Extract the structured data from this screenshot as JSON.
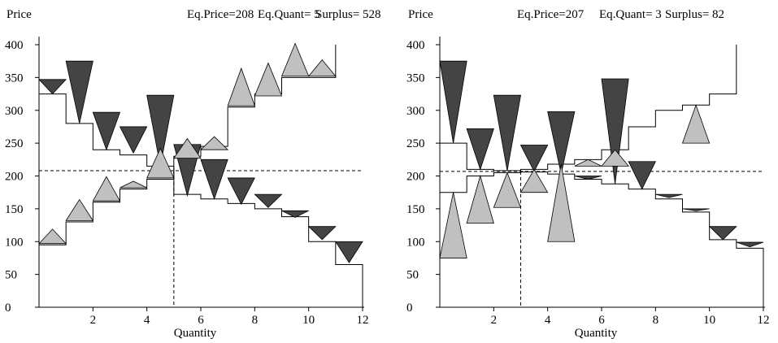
{
  "chart_data": [
    {
      "type": "step",
      "ylabel": "Price",
      "xlabel": "Quantity",
      "header": {
        "price_label": "Eq.Price=208",
        "quant_label": "Eq.Quant= 5",
        "surplus_label": "Surplus= 528"
      },
      "xlim": [
        0,
        12
      ],
      "ylim": [
        0,
        400
      ],
      "x_ticks": [
        2,
        4,
        6,
        8,
        10,
        12
      ],
      "y_ticks": [
        0,
        50,
        100,
        150,
        200,
        250,
        300,
        350,
        400
      ],
      "equilibrium": {
        "price": 208,
        "quantity": 5
      },
      "demand_steps": [
        325,
        280,
        240,
        232,
        215,
        172,
        165,
        158,
        150,
        138,
        100,
        65
      ],
      "supply_steps": [
        95,
        130,
        160,
        180,
        195,
        230,
        245,
        305,
        325,
        350,
        350,
        400
      ],
      "buyer_bids": [
        {
          "x": 0.5,
          "value": 325,
          "height": 22
        },
        {
          "x": 1.5,
          "value": 280,
          "height": 95
        },
        {
          "x": 2.5,
          "value": 240,
          "height": 57
        },
        {
          "x": 3.5,
          "value": 235,
          "height": 40
        },
        {
          "x": 4.5,
          "value": 215,
          "height": 108
        },
        {
          "x": 5.5,
          "value": 170,
          "height": 78
        },
        {
          "x": 6.5,
          "value": 165,
          "height": 60
        },
        {
          "x": 7.5,
          "value": 157,
          "height": 40
        },
        {
          "x": 8.5,
          "value": 152,
          "height": 20
        },
        {
          "x": 9.5,
          "value": 137,
          "height": 10
        },
        {
          "x": 10.5,
          "value": 103,
          "height": 20
        },
        {
          "x": 11.5,
          "value": 68,
          "height": 32
        }
      ],
      "seller_asks": [
        {
          "x": 0.5,
          "value": 97,
          "height": 22
        },
        {
          "x": 1.5,
          "value": 132,
          "height": 32
        },
        {
          "x": 2.5,
          "value": 162,
          "height": 37
        },
        {
          "x": 3.5,
          "value": 182,
          "height": 10
        },
        {
          "x": 4.5,
          "value": 197,
          "height": 45
        },
        {
          "x": 5.5,
          "value": 227,
          "height": 30
        },
        {
          "x": 6.5,
          "value": 240,
          "height": 20
        },
        {
          "x": 7.5,
          "value": 307,
          "height": 57
        },
        {
          "x": 8.5,
          "value": 322,
          "height": 50
        },
        {
          "x": 9.5,
          "value": 352,
          "height": 50
        },
        {
          "x": 10.5,
          "value": 352,
          "height": 25
        }
      ]
    },
    {
      "type": "step",
      "ylabel": "Price",
      "xlabel": "Quantity",
      "header": {
        "price_label": "Eq.Price=207",
        "quant_label": "Eq.Quant= 3",
        "surplus_label": "Surplus=  82"
      },
      "xlim": [
        0,
        12
      ],
      "ylim": [
        0,
        400
      ],
      "x_ticks": [
        2,
        4,
        6,
        8,
        10,
        12
      ],
      "y_ticks": [
        0,
        50,
        100,
        150,
        200,
        250,
        300,
        350,
        400
      ],
      "equilibrium": {
        "price": 207,
        "quantity": 3
      },
      "demand_steps": [
        250,
        210,
        208,
        206,
        203,
        195,
        188,
        180,
        165,
        145,
        103,
        90
      ],
      "supply_steps": [
        175,
        200,
        205,
        210,
        218,
        225,
        240,
        275,
        300,
        308,
        325,
        400
      ],
      "buyer_bids": [
        {
          "x": 0.5,
          "value": 250,
          "height": 125
        },
        {
          "x": 1.5,
          "value": 210,
          "height": 62
        },
        {
          "x": 2.5,
          "value": 208,
          "height": 115
        },
        {
          "x": 3.5,
          "value": 207,
          "height": 40
        },
        {
          "x": 4.5,
          "value": 203,
          "height": 95
        },
        {
          "x": 5.5,
          "value": 195,
          "height": 5
        },
        {
          "x": 6.5,
          "value": 188,
          "height": 160
        },
        {
          "x": 7.5,
          "value": 180,
          "height": 42
        },
        {
          "x": 8.5,
          "value": 167,
          "height": 5
        },
        {
          "x": 9.5,
          "value": 147,
          "height": 3
        },
        {
          "x": 10.5,
          "value": 103,
          "height": 20
        },
        {
          "x": 11.5,
          "value": 92,
          "height": 7
        }
      ],
      "seller_asks": [
        {
          "x": 0.5,
          "value": 75,
          "height": 100
        },
        {
          "x": 1.5,
          "value": 128,
          "height": 72
        },
        {
          "x": 2.5,
          "value": 152,
          "height": 53
        },
        {
          "x": 3.5,
          "value": 175,
          "height": 35
        },
        {
          "x": 4.5,
          "value": 100,
          "height": 118
        },
        {
          "x": 5.5,
          "value": 215,
          "height": 10
        },
        {
          "x": 6.5,
          "value": 215,
          "height": 25
        },
        {
          "x": 9.5,
          "value": 250,
          "height": 58
        }
      ]
    }
  ],
  "colors": {
    "buyer_fill": "#444444",
    "seller_fill": "#c0c0c0",
    "line": "#000000"
  }
}
